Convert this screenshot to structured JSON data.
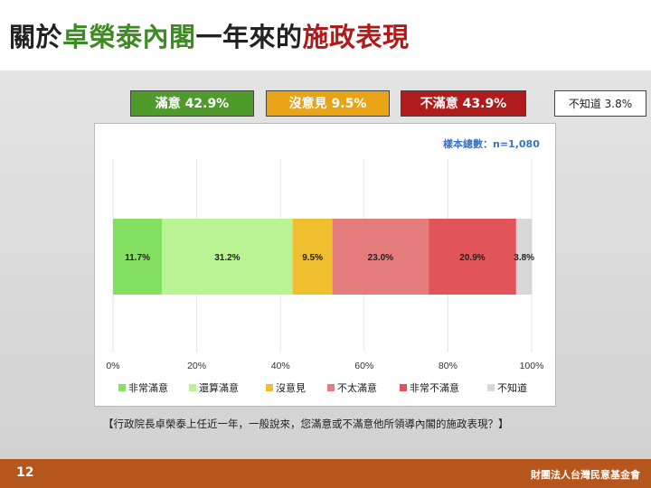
{
  "title": {
    "part1": "關於",
    "part2": "卓榮泰內閣",
    "part3": "一年來的",
    "part4": "施政表現"
  },
  "summary": [
    {
      "label": "滿意 42.9%",
      "color": "#4e9a2b"
    },
    {
      "label": "沒意見 9.5%",
      "color": "#e8a317"
    },
    {
      "label": "不滿意 43.9%",
      "color": "#b01c1c"
    },
    {
      "label": "不知道 3.8%",
      "color": "#ffffff"
    }
  ],
  "sample_note": "樣本總數：n=1,080",
  "question": "【行政院長卓榮泰上任近一年，一般說來，您滿意或不滿意他所領導內閣的施政表現？】",
  "chart_data": {
    "type": "bar",
    "orientation": "horizontal-stacked",
    "xlim": [
      0,
      100
    ],
    "x_ticks": [
      "0%",
      "20%",
      "40%",
      "60%",
      "80%",
      "100%"
    ],
    "grid": true,
    "legend_position": "bottom",
    "series": [
      {
        "name": "非常滿意",
        "value": 11.7,
        "label": "11.7%",
        "color": "#84e060"
      },
      {
        "name": "還算滿意",
        "value": 31.2,
        "label": "31.2%",
        "color": "#b9f393"
      },
      {
        "name": "沒意見",
        "value": 9.5,
        "label": "9.5%",
        "color": "#f0bf2f"
      },
      {
        "name": "不太滿意",
        "value": 23.0,
        "label": "23.0%",
        "color": "#e57c7c"
      },
      {
        "name": "非常不滿意",
        "value": 20.9,
        "label": "20.9%",
        "color": "#e0545a"
      },
      {
        "name": "不知道",
        "value": 3.8,
        "label": "3.8%",
        "color": "#d8d8d8"
      }
    ]
  },
  "footer": {
    "page": "12",
    "org": "財團法人台灣民意基金會"
  }
}
